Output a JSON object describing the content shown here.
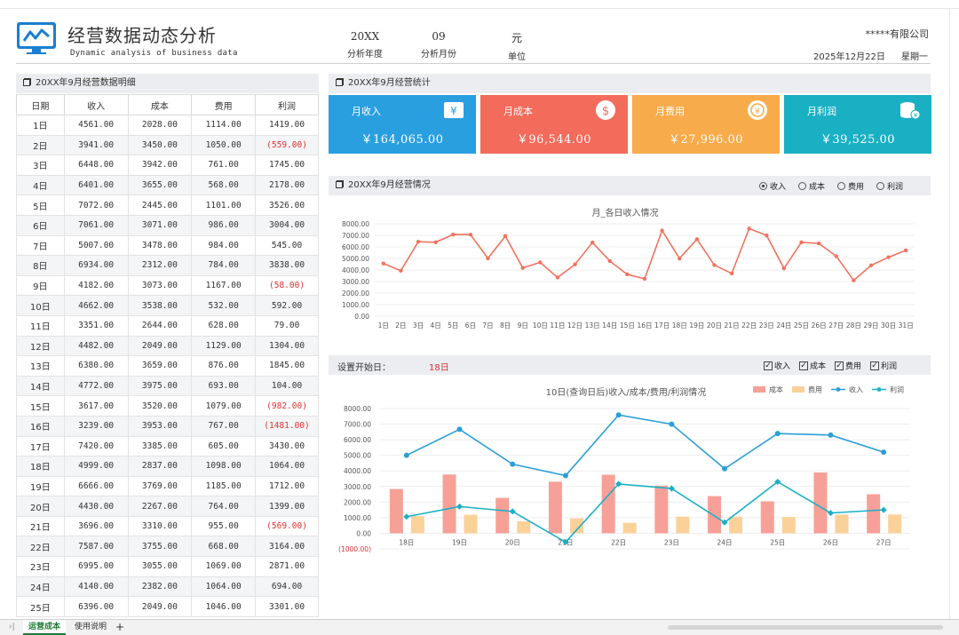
{
  "header": {
    "title": "经营数据动态分析",
    "subtitle": "Dynamic analysis of business data",
    "year_value": "20XX",
    "year_label": "分析年度",
    "month_value": "09",
    "month_label": "分析月份",
    "unit_value": "元",
    "unit_label": "单位",
    "company": "*****有限公司",
    "date": "2025年12月22日",
    "weekday": "星期一"
  },
  "detail_panel": {
    "title": "20XX年9月经营数据明细",
    "columns": [
      "日期",
      "收入",
      "成本",
      "费用",
      "利润"
    ],
    "rows": [
      [
        "1日",
        "4561.00",
        "2028.00",
        "1114.00",
        "1419.00"
      ],
      [
        "2日",
        "3941.00",
        "3450.00",
        "1050.00",
        "(559.00)"
      ],
      [
        "3日",
        "6448.00",
        "3942.00",
        "761.00",
        "1745.00"
      ],
      [
        "4日",
        "6401.00",
        "3655.00",
        "568.00",
        "2178.00"
      ],
      [
        "5日",
        "7072.00",
        "2445.00",
        "1101.00",
        "3526.00"
      ],
      [
        "6日",
        "7061.00",
        "3071.00",
        "986.00",
        "3004.00"
      ],
      [
        "7日",
        "5007.00",
        "3478.00",
        "984.00",
        "545.00"
      ],
      [
        "8日",
        "6934.00",
        "2312.00",
        "784.00",
        "3838.00"
      ],
      [
        "9日",
        "4182.00",
        "3073.00",
        "1167.00",
        "(58.00)"
      ],
      [
        "10日",
        "4662.00",
        "3538.00",
        "532.00",
        "592.00"
      ],
      [
        "11日",
        "3351.00",
        "2644.00",
        "628.00",
        "79.00"
      ],
      [
        "12日",
        "4482.00",
        "2049.00",
        "1129.00",
        "1304.00"
      ],
      [
        "13日",
        "6380.00",
        "3659.00",
        "876.00",
        "1845.00"
      ],
      [
        "14日",
        "4772.00",
        "3975.00",
        "693.00",
        "104.00"
      ],
      [
        "15日",
        "3617.00",
        "3520.00",
        "1079.00",
        "(982.00)"
      ],
      [
        "16日",
        "3239.00",
        "3953.00",
        "767.00",
        "(1481.00)"
      ],
      [
        "17日",
        "7420.00",
        "3385.00",
        "605.00",
        "3430.00"
      ],
      [
        "18日",
        "4999.00",
        "2837.00",
        "1098.00",
        "1064.00"
      ],
      [
        "19日",
        "6666.00",
        "3769.00",
        "1185.00",
        "1712.00"
      ],
      [
        "20日",
        "4430.00",
        "2267.00",
        "764.00",
        "1399.00"
      ],
      [
        "21日",
        "3696.00",
        "3310.00",
        "955.00",
        "(569.00)"
      ],
      [
        "22日",
        "7587.00",
        "3755.00",
        "668.00",
        "3164.00"
      ],
      [
        "23日",
        "6995.00",
        "3055.00",
        "1069.00",
        "2871.00"
      ],
      [
        "24日",
        "4140.00",
        "2382.00",
        "1064.00",
        "694.00"
      ],
      [
        "25日",
        "6396.00",
        "2049.00",
        "1046.00",
        "3301.00"
      ]
    ]
  },
  "stats_panel": {
    "title": "20XX年9月经营统计",
    "cards": [
      {
        "label": "月收入",
        "value": "￥164,065.00",
        "color": "#2a9fe0",
        "icon": "yen-wallet-icon"
      },
      {
        "label": "月成本",
        "value": "￥96,544.00",
        "color": "#f26b5b",
        "icon": "dollar-circle-icon"
      },
      {
        "label": "月费用",
        "value": "￥27,996.00",
        "color": "#f8ab4b",
        "icon": "coin-exchange-icon"
      },
      {
        "label": "月利润",
        "value": "￥39,525.00",
        "color": "#1ab0c4",
        "icon": "coin-stack-icon"
      }
    ]
  },
  "situation_panel": {
    "title": "20XX年9月经营情况",
    "radios": [
      {
        "label": "收入",
        "selected": true
      },
      {
        "label": "成本",
        "selected": false
      },
      {
        "label": "费用",
        "selected": false
      },
      {
        "label": "利润",
        "selected": false
      }
    ]
  },
  "query_panel": {
    "start_label": "设置开始日：",
    "start_value": "18日",
    "checks": [
      "收入",
      "成本",
      "费用",
      "利润"
    ]
  },
  "chart_data": [
    {
      "type": "line",
      "title": "月_各日收入情况",
      "categories": [
        "1日",
        "2日",
        "3日",
        "4日",
        "5日",
        "6日",
        "7日",
        "8日",
        "9日",
        "10日",
        "11日",
        "12日",
        "13日",
        "14日",
        "15日",
        "16日",
        "17日",
        "18日",
        "19日",
        "20日",
        "21日",
        "22日",
        "23日",
        "24日",
        "25日",
        "26日",
        "27日",
        "28日",
        "29日",
        "30日",
        "31日"
      ],
      "series": [
        {
          "name": "收入",
          "values": [
            4561,
            3941,
            6448,
            6401,
            7072,
            7061,
            5007,
            6934,
            4182,
            4662,
            3351,
            4482,
            6380,
            4772,
            3617,
            3239,
            7420,
            4999,
            6666,
            4430,
            3696,
            7587,
            6995,
            4140,
            6396,
            6300,
            5200,
            3100,
            4400,
            5100,
            5700
          ]
        }
      ],
      "ylim": [
        0,
        8000
      ],
      "yticks": [
        "8000.00",
        "7000.00",
        "6000.00",
        "5000.00",
        "4000.00",
        "3000.00",
        "2000.00",
        "1000.00",
        "0.00"
      ],
      "color": "#f0735f"
    },
    {
      "type": "bar",
      "title": "10日(查询日后)收入/成本/费用/利润情况",
      "categories": [
        "18日",
        "19日",
        "20日",
        "21日",
        "22日",
        "23日",
        "24日",
        "25日",
        "26日",
        "27日"
      ],
      "series": [
        {
          "name": "成本",
          "kind": "bar",
          "color": "#f7a097",
          "values": [
            2837,
            3769,
            2267,
            3310,
            3755,
            3055,
            2382,
            2049,
            3900,
            2500
          ]
        },
        {
          "name": "费用",
          "kind": "bar",
          "color": "#fbd19a",
          "values": [
            1098,
            1185,
            764,
            955,
            668,
            1069,
            1064,
            1046,
            1200,
            1200
          ]
        },
        {
          "name": "收入",
          "kind": "line",
          "color": "#2b9fd6",
          "values": [
            4999,
            6666,
            4430,
            3696,
            7587,
            6995,
            4140,
            6396,
            6300,
            5200
          ]
        },
        {
          "name": "利润",
          "kind": "line",
          "color": "#1ab0c4",
          "values": [
            1064,
            1712,
            1399,
            -569,
            3164,
            2871,
            694,
            3301,
            1300,
            1500
          ]
        }
      ],
      "ylim": [
        -1000,
        8000
      ],
      "yticks": [
        "8000.00",
        "7000.00",
        "6000.00",
        "5000.00",
        "4000.00",
        "3000.00",
        "2000.00",
        "1000.00",
        "0.00",
        "(1000.00)"
      ]
    }
  ],
  "tabs": {
    "items": [
      "运营成本",
      "使用说明"
    ],
    "add": "+"
  }
}
